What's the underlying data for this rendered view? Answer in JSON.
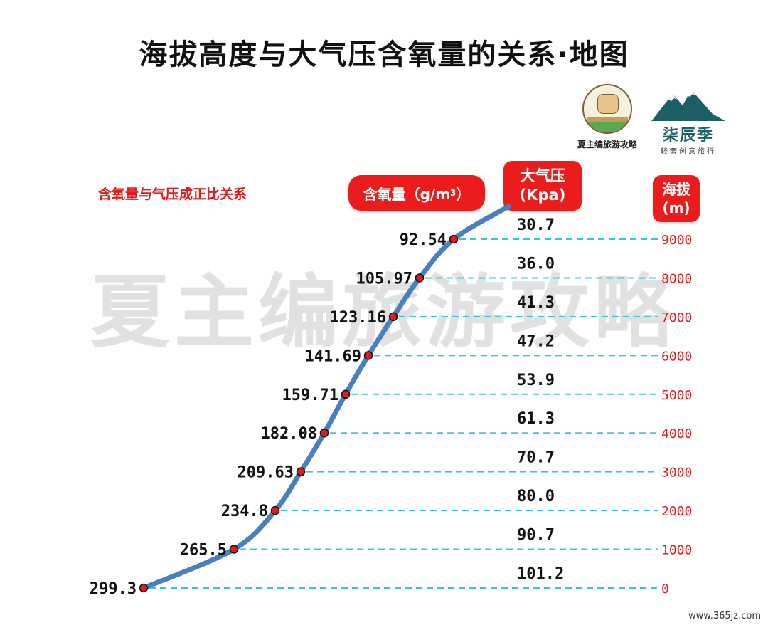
{
  "title": "海拔高度与大气压含氧量的关系·地图",
  "logos": {
    "brand1_caption": "夏主编旅游攻略",
    "brand2_name": "柒辰季",
    "brand2_sub": "轻奢创意旅行"
  },
  "note": "含氧量与气压成正比关系",
  "headers": {
    "oxygen": "含氧量（g/m",
    "oxygen_sup": "3",
    "oxygen_close": "）",
    "pressure_line1": "大气压",
    "pressure_line2": "(Kpa)",
    "altitude_line1": "海拔",
    "altitude_line2": "(m)"
  },
  "watermark": "夏主编旅游攻略",
  "footer": "www.365jz.com",
  "colors": {
    "curve": "#4a7fbd",
    "dot": "#e01b1b",
    "gridline": "#35c9d6",
    "accent_red": "#ec1c1c"
  },
  "chart_data": {
    "type": "line",
    "x_label": "含氧量（g/m3）",
    "y_label": "海拔(m)",
    "altitudes": [
      "9000",
      "8000",
      "7000",
      "6000",
      "5000",
      "4000",
      "3000",
      "2000",
      "1000",
      "0"
    ],
    "altitude_values": [
      9000,
      8000,
      7000,
      6000,
      5000,
      4000,
      3000,
      2000,
      1000,
      0
    ],
    "oxygen": [
      "92.54",
      "105.97",
      "123.16",
      "141.69",
      "159.71",
      "182.08",
      "209.63",
      "234.8",
      "265.5",
      "299.3"
    ],
    "pressure": [
      "30.7",
      "36.0",
      "41.3",
      "47.2",
      "53.9",
      "61.3",
      "70.7",
      "80.0",
      "90.7",
      "101.2"
    ]
  }
}
